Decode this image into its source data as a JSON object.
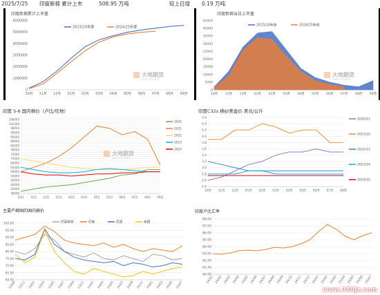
{
  "header": {
    "date": "2025/7/25",
    "title": "印度新棉  累计上市",
    "value": "508.95  万吨",
    "compare": "较上日增",
    "delta": "0.19  万吨"
  },
  "brand": {
    "name": "大地期货",
    "sub": "DADI FUTURES",
    "watermark": "www.365jz.com"
  },
  "chart_data": [
    {
      "type": "line",
      "title": "印度新棉累计上市量",
      "x": [
        "10月",
        "11月",
        "12月",
        "01月",
        "02月",
        "03月",
        "04月",
        "05月",
        "06月",
        "07月",
        "08月",
        "09月"
      ],
      "ylim": [
        0,
        6000000
      ],
      "yticks": [
        "0",
        "1000000",
        "2000000",
        "3000000",
        "4000000",
        "5000000",
        "6000000"
      ],
      "series": [
        {
          "name": "2023/24年度",
          "color": "#4472c4",
          "values": [
            150000,
            700000,
            1650000,
            2750000,
            3750000,
            4350000,
            4700000,
            5000000,
            5200000,
            5350000,
            5500000,
            5600000
          ]
        },
        {
          "name": "2024/25年度",
          "color": "#ed7d31",
          "values": [
            100000,
            500000,
            1450000,
            2450000,
            3400000,
            4150000,
            4600000,
            4850000,
            5000000,
            5090000,
            null,
            null
          ]
        }
      ]
    },
    {
      "type": "area",
      "title": "印度新棉当日上市量",
      "x": [
        "10月",
        "11月",
        "12月",
        "01月",
        "02月",
        "03月",
        "04月",
        "05月",
        "06月",
        "07月",
        "08月",
        "09月"
      ],
      "ylim": [
        0,
        45000
      ],
      "yticks": [
        "0",
        "5000",
        "10000",
        "15000",
        "20000",
        "25000",
        "30000",
        "35000",
        "40000",
        "45000"
      ],
      "series": [
        {
          "name": "2023/24年度",
          "color": "#4472c4",
          "values": [
            2000,
            12000,
            28000,
            37000,
            38000,
            26000,
            14000,
            8000,
            5000,
            3000,
            2000,
            6000
          ]
        },
        {
          "name": "2024/25年度",
          "color": "#ed7d31",
          "values": [
            1500,
            9000,
            26000,
            34000,
            33000,
            22000,
            12000,
            6000,
            3500,
            2000,
            null,
            null
          ]
        }
      ]
    },
    {
      "type": "line",
      "title": "印度 S-6 国内棉价（卢比/坎地）",
      "x": [
        "10月",
        "11月",
        "12月",
        "01月",
        "02月",
        "03月",
        "04月",
        "05月",
        "06月",
        "07月",
        "08月",
        "09月"
      ],
      "ylim": [
        38000,
        108000
      ],
      "yticks": [
        "38000",
        "40000",
        "42000",
        "44000",
        "46000",
        "48000",
        "50000",
        "52000",
        "54000",
        "56000",
        "58000",
        "60000",
        "62000",
        "64000",
        "66000",
        "68000",
        "70000",
        "72000",
        "74000",
        "76000",
        "78000",
        "80000",
        "82000",
        "84000",
        "86000",
        "88000",
        "90000",
        "92000",
        "94000",
        "96000",
        "98000",
        "100000",
        "102000",
        "104000",
        "106000",
        "108000"
      ],
      "series": [
        {
          "name": "2020",
          "color": "#6aa84f",
          "values": [
            40000,
            42000,
            44000,
            45000,
            46000,
            48000,
            50000,
            52000,
            55000,
            56000,
            60000,
            60000
          ]
        },
        {
          "name": "2021",
          "color": "#ed7d31",
          "values": [
            58000,
            62000,
            66000,
            72000,
            80000,
            90000,
            100000,
            98000,
            92000,
            95000,
            88000,
            64000
          ]
        },
        {
          "name": "2022",
          "color": "#ffd966",
          "values": [
            70000,
            68000,
            66000,
            64000,
            62000,
            61000,
            60000,
            60000,
            60000,
            61000,
            62000,
            62000
          ]
        },
        {
          "name": "2023",
          "color": "#00b0f0",
          "values": [
            62000,
            60000,
            58000,
            57000,
            57000,
            58000,
            60000,
            61000,
            60000,
            59000,
            58000,
            58000
          ]
        },
        {
          "name": "2024",
          "color": "#e00000",
          "values": [
            58000,
            56000,
            55000,
            55000,
            54000,
            55000,
            56000,
            56000,
            57000,
            57000,
            58000,
            58000
          ]
        }
      ]
    },
    {
      "type": "line",
      "title": "印度C32s 棉纱美金价  美元/公斤",
      "x": [
        "10月",
        "11月",
        "12月",
        "01月",
        "02月",
        "03月",
        "04月",
        "05月",
        "06月",
        "07月",
        "08月"
      ],
      "ylim": [
        2.4,
        4.6
      ],
      "yticks": [
        "2.4",
        "2.6",
        "2.8",
        "3.0",
        "3.2",
        "3.4",
        "3.6",
        "3.8",
        "4.0",
        "4.2",
        "4.4",
        "4.6"
      ],
      "series": [
        {
          "name": "2020/21",
          "color": "#8e7cc3",
          "values": [
            2.6,
            2.7,
            2.9,
            3.1,
            3.2,
            3.4,
            3.5,
            3.5,
            3.6,
            3.5,
            3.5
          ]
        },
        {
          "name": "2021/22",
          "color": "#e69138",
          "values": [
            3.9,
            3.9,
            4.2,
            4.2,
            4.4,
            4.3,
            4.1,
            4.2,
            4.2,
            3.8,
            3.8
          ]
        },
        {
          "name": "2022/23",
          "color": "#3d85c6",
          "values": [
            3.2,
            3.1,
            3.0,
            2.9,
            2.9,
            2.9,
            2.9,
            2.9,
            2.9,
            2.9,
            2.9
          ]
        },
        {
          "name": "2023/24",
          "color": "#00b0f0",
          "values": [
            2.8,
            2.8,
            2.8,
            2.9,
            2.9,
            2.8,
            2.8,
            2.8,
            2.8,
            2.8,
            2.8
          ]
        },
        {
          "name": "2024/25",
          "color": "#e00000",
          "values": [
            2.75,
            2.75,
            2.75,
            2.75,
            2.75,
            2.75,
            2.75,
            2.75,
            2.75,
            2.75,
            2.75
          ]
        }
      ]
    },
    {
      "type": "line",
      "title": "主要产棉国的国内棉价",
      "ylim": [
        60,
        100
      ],
      "yticks": [
        "60.00",
        "65.00",
        "70.00",
        "75.00",
        "80.00",
        "85.00",
        "90.00",
        "95.00",
        "100.00"
      ],
      "x": [
        "22/09",
        "22/11",
        "23/01",
        "23/03",
        "23/05",
        "23/07",
        "23/09",
        "23/11",
        "24/01",
        "24/03",
        "24/05",
        "24/07",
        "24/09",
        "24/11",
        "25/01",
        "25/03",
        "25/05",
        "25/07"
      ],
      "series": [
        {
          "name": "巴基斯坦",
          "color": "#a5a5a5",
          "values": [
            80,
            78,
            82,
            92,
            88,
            80,
            78,
            76,
            79,
            75,
            74,
            77,
            75,
            73,
            78,
            77,
            74,
            75
          ]
        },
        {
          "name": "印度",
          "color": "#ed7d31",
          "values": [
            88,
            90,
            92,
            98,
            94,
            88,
            86,
            85,
            84,
            86,
            83,
            85,
            82,
            80,
            82,
            81,
            80,
            84
          ]
        },
        {
          "name": "巴西",
          "color": "#4472c4",
          "values": [
            75,
            74,
            78,
            96,
            85,
            80,
            76,
            74,
            73,
            72,
            73,
            70,
            72,
            71,
            69,
            70,
            72,
            71
          ]
        },
        {
          "name": "美国",
          "color": "#ffc000",
          "values": [
            78,
            72,
            76,
            95,
            80,
            72,
            66,
            64,
            68,
            66,
            64,
            62,
            63,
            66,
            64,
            66,
            68,
            69
          ]
        }
      ]
    },
    {
      "type": "line",
      "title": "印度卢比汇率",
      "ylim": [
        80,
        88
      ],
      "yticks": [
        "80.00",
        "81.00",
        "82.00",
        "83.00",
        "84.00",
        "85.00",
        "86.00",
        "87.00",
        "88.00"
      ],
      "x": [
        "24/01",
        "24/02",
        "24/03",
        "24/04",
        "24/05",
        "24/06",
        "24/07",
        "24/08",
        "24/09",
        "24/10",
        "24/11",
        "24/12",
        "25/01",
        "25/02",
        "25/03",
        "25/04",
        "25/05",
        "25/06",
        "25/07"
      ],
      "series": [
        {
          "name": "卢比",
          "color": "#ed7d31",
          "values": [
            83.0,
            82.9,
            83.1,
            83.4,
            83.5,
            83.4,
            83.6,
            83.9,
            83.8,
            84.0,
            84.4,
            85.0,
            86.2,
            87.2,
            86.5,
            85.5,
            85.0,
            85.6,
            86.0
          ]
        }
      ]
    }
  ]
}
